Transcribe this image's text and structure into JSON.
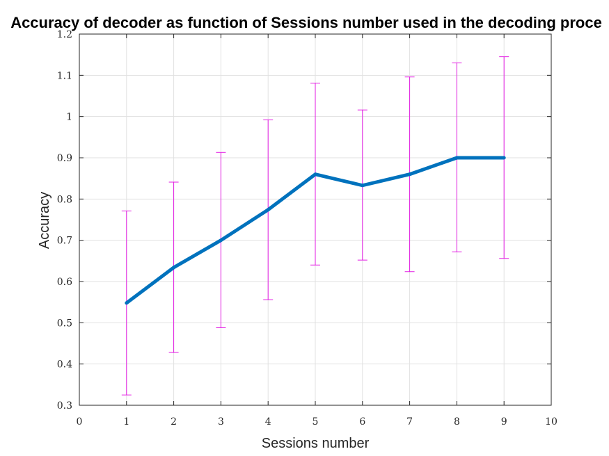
{
  "chart_data": {
    "type": "line",
    "title": "Accuracy of decoder as function of Sessions number used in the decoding proce",
    "xlabel": "Sessions number",
    "ylabel": "Accuracy",
    "xlim": [
      0,
      10
    ],
    "ylim": [
      0.3,
      1.2
    ],
    "xticks": [
      "0",
      "1",
      "2",
      "3",
      "4",
      "5",
      "6",
      "7",
      "8",
      "9",
      "10"
    ],
    "yticks": [
      "0.3",
      "0.4",
      "0.5",
      "0.6",
      "0.7",
      "0.8",
      "0.9",
      "1",
      "1.1",
      "1.2"
    ],
    "grid": true,
    "x": [
      1,
      2,
      3,
      4,
      5,
      6,
      7,
      8,
      9
    ],
    "series": [
      {
        "values": [
          0.548,
          0.634,
          0.7,
          0.774,
          0.86,
          0.833,
          0.86,
          0.9,
          0.9
        ],
        "error_lower": [
          0.325,
          0.428,
          0.488,
          0.556,
          0.64,
          0.652,
          0.624,
          0.672,
          0.656
        ],
        "error_upper": [
          0.771,
          0.841,
          0.913,
          0.992,
          1.081,
          1.016,
          1.096,
          1.13,
          1.145
        ],
        "line_color": "#0072bd",
        "error_color": "#e31ae3"
      }
    ]
  }
}
